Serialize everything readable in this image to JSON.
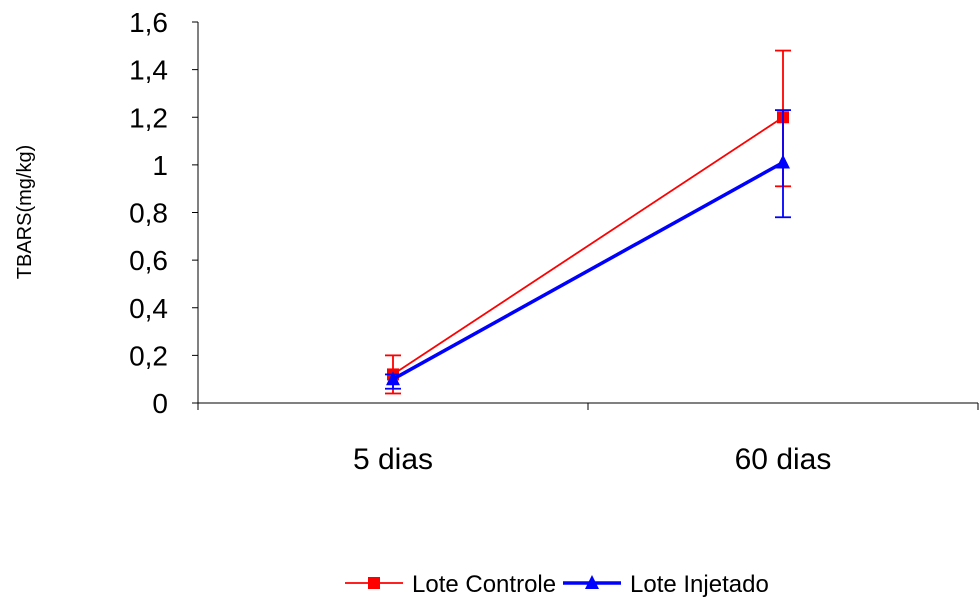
{
  "chart_data": {
    "type": "line",
    "ylabel": "TBARS(mg/kg)",
    "xlabel": "",
    "ylim": [
      0,
      1.6
    ],
    "yticks": [
      "0",
      "0,2",
      "0,4",
      "0,6",
      "0,8",
      "1",
      "1,2",
      "1,4",
      "1,6"
    ],
    "yticks_values": [
      0,
      0.2,
      0.4,
      0.6,
      0.8,
      1.0,
      1.2,
      1.4,
      1.6
    ],
    "categories": [
      "5 dias",
      "60 dias"
    ],
    "grid": false,
    "legend_position": "bottom",
    "series": [
      {
        "name": "Lote Controle",
        "color": "#ff0000",
        "marker": "square",
        "values": [
          0.12,
          1.2
        ],
        "error_low": [
          0.04,
          0.91
        ],
        "error_high": [
          0.2,
          1.48
        ]
      },
      {
        "name": "Lote Injetado",
        "color": "#0000ff",
        "marker": "triangle",
        "values": [
          0.1,
          1.01
        ],
        "error_low": [
          0.06,
          0.78
        ],
        "error_high": [
          0.12,
          1.23
        ]
      }
    ]
  }
}
